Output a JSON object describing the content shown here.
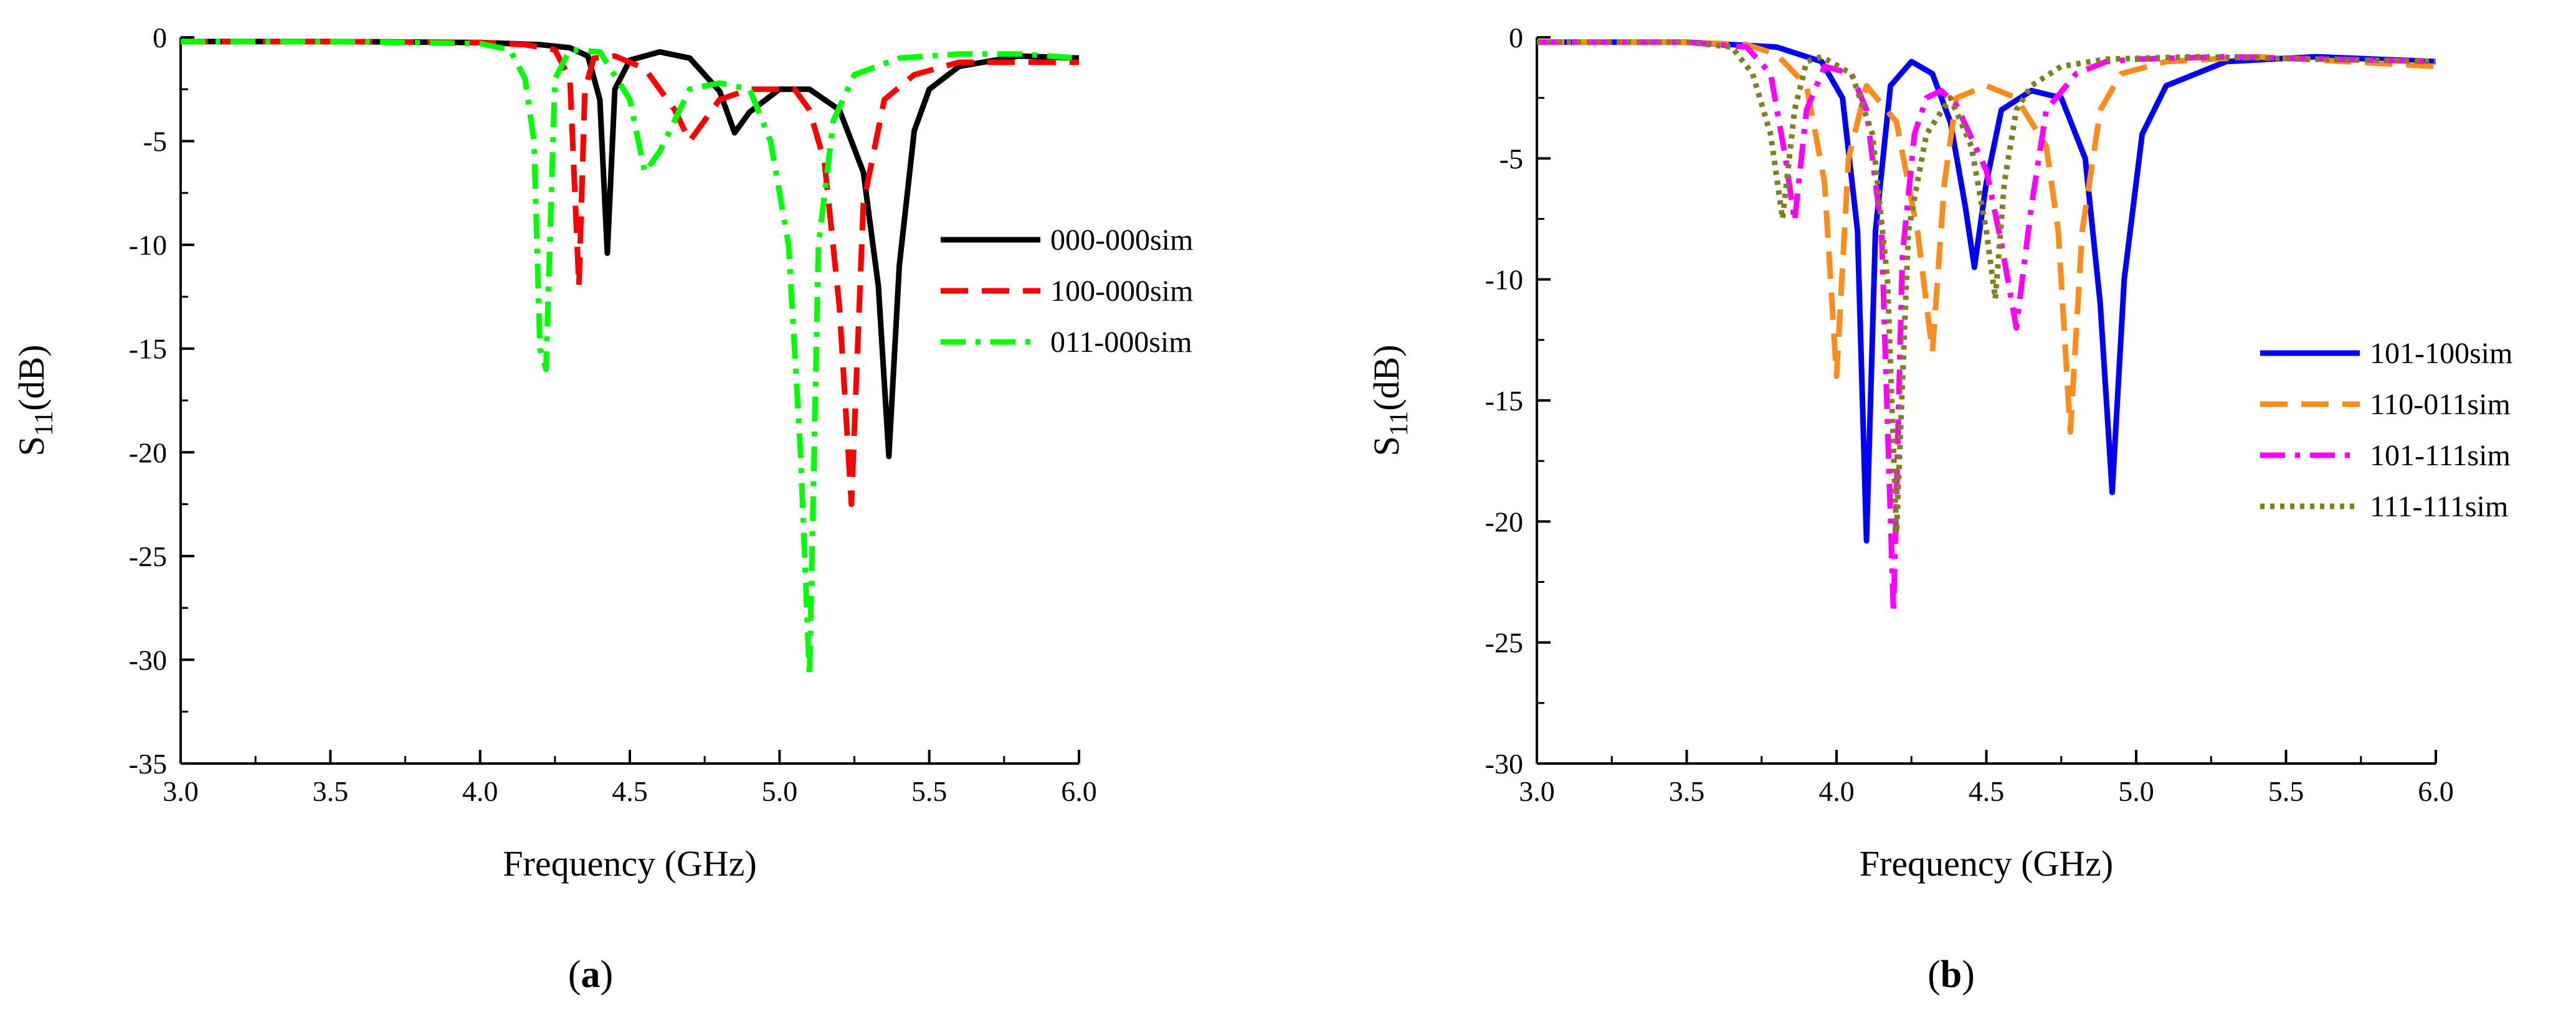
{
  "chart_data": [
    {
      "type": "line",
      "panel_label": "a",
      "xlabel": "Frequency (GHz)",
      "ylabel_main": "S",
      "ylabel_sub": "11",
      "ylabel_unit": "(dB)",
      "xlim": [
        3.0,
        6.0
      ],
      "ylim": [
        -35,
        0
      ],
      "x_ticks": [
        3.0,
        3.5,
        4.0,
        4.5,
        5.0,
        5.5,
        6.0
      ],
      "x_tick_labels": [
        "3.0",
        "3.5",
        "4.0",
        "4.5",
        "5.0",
        "5.5",
        "6.0"
      ],
      "y_ticks": [
        0,
        -5,
        -10,
        -15,
        -20,
        -25,
        -30,
        -35
      ],
      "y_tick_labels": [
        "0",
        "-5",
        "-10",
        "-15",
        "-20",
        "-25",
        "-30",
        "-35"
      ],
      "legend_position": "right-middle",
      "series": [
        {
          "name": "000-000sim",
          "color": "#000000",
          "dash": "solid",
          "x": [
            3.0,
            3.5,
            4.0,
            4.2,
            4.3,
            4.36,
            4.4,
            4.425,
            4.45,
            4.5,
            4.6,
            4.7,
            4.8,
            4.85,
            4.9,
            5.0,
            5.1,
            5.2,
            5.28,
            5.33,
            5.365,
            5.4,
            5.45,
            5.5,
            5.6,
            5.8,
            6.0
          ],
          "y": [
            -0.2,
            -0.2,
            -0.25,
            -0.35,
            -0.5,
            -0.9,
            -3.0,
            -10.4,
            -2.5,
            -1.1,
            -0.7,
            -1.0,
            -2.6,
            -4.6,
            -3.6,
            -2.5,
            -2.5,
            -3.5,
            -6.5,
            -12.0,
            -20.2,
            -11.0,
            -4.5,
            -2.5,
            -1.4,
            -0.9,
            -1.0
          ]
        },
        {
          "name": "100-000sim",
          "color": "#ff0000",
          "dash": "long-dash",
          "x": [
            3.0,
            3.5,
            4.0,
            4.15,
            4.25,
            4.3,
            4.33,
            4.35,
            4.38,
            4.45,
            4.55,
            4.65,
            4.7,
            4.8,
            4.9,
            5.0,
            5.05,
            5.1,
            5.15,
            5.2,
            5.24,
            5.28,
            5.35,
            5.45,
            5.6,
            6.0
          ],
          "y": [
            -0.2,
            -0.2,
            -0.25,
            -0.35,
            -0.6,
            -2.0,
            -12.0,
            -2.5,
            -1.0,
            -0.9,
            -1.5,
            -3.5,
            -5.0,
            -3.0,
            -2.5,
            -2.5,
            -2.5,
            -3.5,
            -6.0,
            -13.0,
            -22.5,
            -8.0,
            -3.0,
            -1.8,
            -1.2,
            -1.2
          ]
        },
        {
          "name": "011-000sim",
          "color": "#00ff00",
          "dash": "dash-dot",
          "x": [
            3.0,
            3.5,
            4.0,
            4.1,
            4.15,
            4.18,
            4.2,
            4.22,
            4.25,
            4.3,
            4.4,
            4.5,
            4.55,
            4.6,
            4.7,
            4.8,
            4.9,
            4.97,
            5.03,
            5.07,
            5.1,
            5.13,
            5.18,
            5.25,
            5.4,
            5.6,
            5.8,
            6.0
          ],
          "y": [
            -0.2,
            -0.2,
            -0.3,
            -0.6,
            -2.0,
            -5.0,
            -15.0,
            -16.0,
            -2.0,
            -0.6,
            -0.7,
            -3.0,
            -6.5,
            -5.5,
            -2.5,
            -2.2,
            -2.5,
            -5.0,
            -10.0,
            -20.0,
            -30.8,
            -10.0,
            -4.0,
            -1.8,
            -1.0,
            -0.8,
            -0.8,
            -1.0
          ]
        }
      ]
    },
    {
      "type": "line",
      "panel_label": "b",
      "xlabel": "Frequency (GHz)",
      "ylabel_main": "S",
      "ylabel_sub": "11",
      "ylabel_unit": "(dB)",
      "xlim": [
        3.0,
        6.0
      ],
      "ylim": [
        -30,
        0
      ],
      "x_ticks": [
        3.0,
        3.5,
        4.0,
        4.5,
        5.0,
        5.5,
        6.0
      ],
      "x_tick_labels": [
        "3.0",
        "3.5",
        "4.0",
        "4.5",
        "5.0",
        "5.5",
        "6.0"
      ],
      "y_ticks": [
        0,
        -5,
        -10,
        -15,
        -20,
        -25,
        -30
      ],
      "y_tick_labels": [
        "0",
        "-5",
        "-10",
        "-15",
        "-20",
        "-25",
        "-30"
      ],
      "legend_position": "right-middle",
      "series": [
        {
          "name": "101-100sim",
          "color": "#0000ff",
          "dash": "solid",
          "x": [
            3.0,
            3.5,
            3.8,
            3.95,
            4.02,
            4.07,
            4.1,
            4.13,
            4.18,
            4.25,
            4.32,
            4.38,
            4.43,
            4.46,
            4.5,
            4.55,
            4.65,
            4.75,
            4.83,
            4.88,
            4.92,
            4.96,
            5.02,
            5.1,
            5.3,
            5.6,
            6.0
          ],
          "y": [
            -0.2,
            -0.2,
            -0.4,
            -1.0,
            -2.5,
            -8.0,
            -20.8,
            -8.0,
            -2.0,
            -1.0,
            -1.5,
            -3.5,
            -7.0,
            -9.5,
            -6.0,
            -3.0,
            -2.2,
            -2.5,
            -5.0,
            -11.0,
            -18.8,
            -10.0,
            -4.0,
            -2.0,
            -1.0,
            -0.8,
            -1.0
          ]
        },
        {
          "name": "110-011sim",
          "color": "#ff8c1a",
          "dash": "long-dash",
          "x": [
            3.0,
            3.5,
            3.7,
            3.8,
            3.9,
            3.96,
            4.0,
            4.04,
            4.1,
            4.2,
            4.27,
            4.32,
            4.36,
            4.4,
            4.5,
            4.6,
            4.7,
            4.74,
            4.78,
            4.82,
            4.88,
            4.95,
            5.1,
            5.4,
            6.0
          ],
          "y": [
            -0.2,
            -0.2,
            -0.3,
            -0.7,
            -2.0,
            -6.0,
            -14.0,
            -5.0,
            -2.0,
            -3.5,
            -8.0,
            -13.0,
            -6.0,
            -2.5,
            -2.0,
            -2.5,
            -4.5,
            -8.0,
            -16.3,
            -8.0,
            -3.0,
            -1.5,
            -1.0,
            -0.8,
            -1.2
          ]
        },
        {
          "name": "101-111sim",
          "color": "#ff00ff",
          "dash": "dash-dot",
          "x": [
            3.0,
            3.5,
            3.7,
            3.78,
            3.83,
            3.86,
            3.9,
            3.96,
            4.05,
            4.1,
            4.15,
            4.19,
            4.22,
            4.26,
            4.3,
            4.35,
            4.4,
            4.5,
            4.55,
            4.6,
            4.65,
            4.7,
            4.8,
            4.9,
            5.0,
            5.3,
            6.0
          ],
          "y": [
            -0.2,
            -0.2,
            -0.4,
            -1.5,
            -5.0,
            -7.6,
            -3.0,
            -1.2,
            -1.5,
            -3.0,
            -8.0,
            -23.8,
            -9.0,
            -4.0,
            -2.5,
            -2.2,
            -2.8,
            -5.5,
            -8.5,
            -12.0,
            -7.0,
            -3.0,
            -1.5,
            -1.0,
            -0.9,
            -0.8,
            -1.0
          ]
        },
        {
          "name": "111-111sim",
          "color": "#808020",
          "dash": "dotted",
          "x": [
            3.0,
            3.5,
            3.65,
            3.72,
            3.78,
            3.82,
            3.86,
            3.9,
            3.95,
            4.05,
            4.12,
            4.17,
            4.2,
            4.24,
            4.3,
            4.38,
            4.45,
            4.5,
            4.53,
            4.56,
            4.6,
            4.65,
            4.75,
            4.9,
            5.2,
            6.0
          ],
          "y": [
            -0.2,
            -0.2,
            -0.4,
            -1.5,
            -4.0,
            -7.5,
            -3.0,
            -1.0,
            -0.8,
            -1.5,
            -4.0,
            -10.0,
            -20.5,
            -8.0,
            -4.0,
            -2.5,
            -4.5,
            -8.0,
            -10.8,
            -6.0,
            -3.0,
            -2.0,
            -1.2,
            -0.9,
            -0.8,
            -1.0
          ]
        }
      ]
    }
  ]
}
